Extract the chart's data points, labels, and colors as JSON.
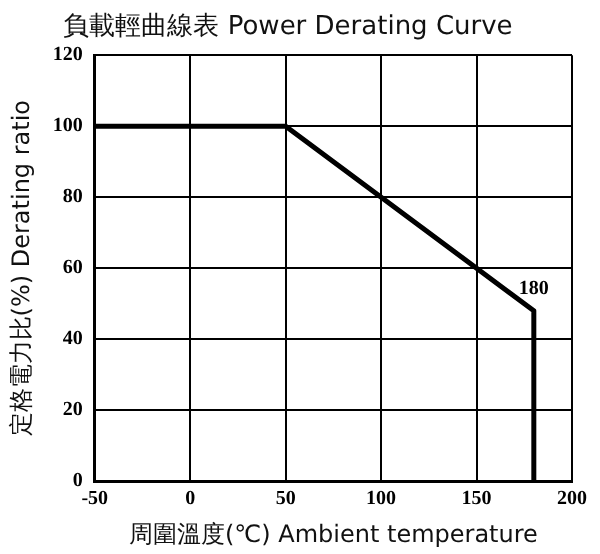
{
  "chart_data": {
    "type": "line",
    "title": "負載輕曲線表 Power Derating Curve",
    "xlabel": "周圍溫度(℃) Ambient temperature",
    "ylabel": "定格電力比(%) Derating ratio",
    "x": [
      -50,
      50,
      180,
      180
    ],
    "series": [
      {
        "color": "#000000",
        "values": [
          100,
          100,
          48,
          0
        ]
      }
    ],
    "xlim": [
      -50,
      200
    ],
    "xticks": [
      -50,
      0,
      50,
      100,
      150,
      200
    ],
    "ylim": [
      0,
      120
    ],
    "yticks": [
      0,
      20,
      40,
      60,
      80,
      100,
      120
    ],
    "grid": true,
    "legend": false,
    "marker": "none",
    "line_style": "solid",
    "annotations": [
      {
        "text": "180",
        "x": 180,
        "y": 48
      }
    ]
  }
}
